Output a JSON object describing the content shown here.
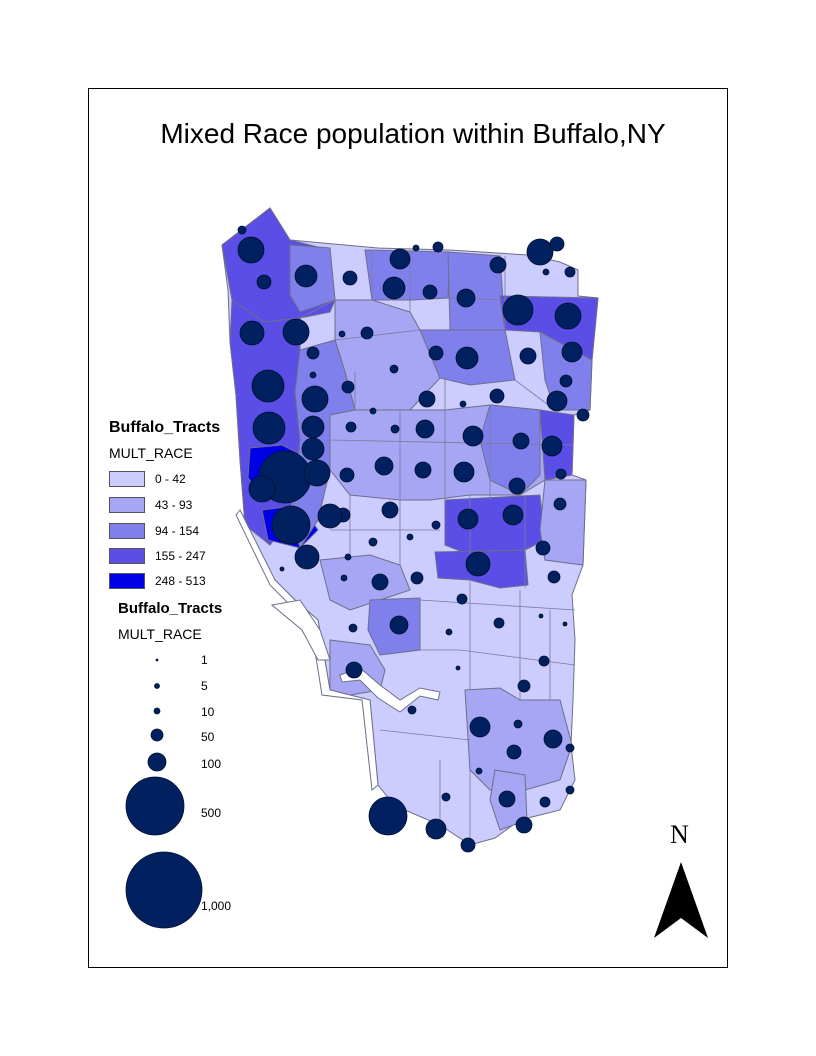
{
  "title": "Mixed Race population within Buffalo,NY",
  "choropleth_legend": {
    "layer_name": "Buffalo_Tracts",
    "field": "MULT_RACE",
    "classes": [
      {
        "label": "0 - 42",
        "color": "#ccccff"
      },
      {
        "label": "43 - 93",
        "color": "#a6a6f4"
      },
      {
        "label": "94 - 154",
        "color": "#8080ec"
      },
      {
        "label": "155 - 247",
        "color": "#5a4ee6"
      },
      {
        "label": "248 - 513",
        "color": "#0000e6"
      }
    ]
  },
  "symbol_legend": {
    "layer_name": "Buffalo_Tracts",
    "field": "MULT_RACE",
    "sizes": [
      "1",
      "5",
      "10",
      "50",
      "100",
      "500",
      "1,000"
    ],
    "symbol_color": "#002060"
  },
  "north_arrow": {
    "label": "N"
  },
  "colors": {
    "tract_outline": "#6e6e8a",
    "water": "#ffffff",
    "frame": "#000000"
  }
}
